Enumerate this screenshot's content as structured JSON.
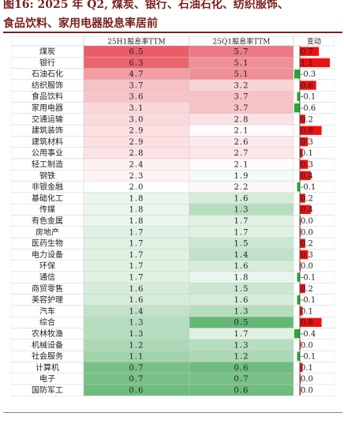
{
  "title": {
    "line1": "图16:   2025 年 Q2, 煤炭、银行、石油石化、纺织服饰、",
    "line2": "食品饮料、家用电器股息率居前"
  },
  "chart_data": {
    "type": "table",
    "columns": [
      "",
      "25H1股息率TTM",
      "25Q1股息率TTM",
      "变动"
    ],
    "rows": [
      {
        "industry": "煤炭",
        "h1": 6.5,
        "q1": 5.7,
        "change": 0.7
      },
      {
        "industry": "银行",
        "h1": 6.3,
        "q1": 5.1,
        "change": 1.1
      },
      {
        "industry": "石油石化",
        "h1": 4.7,
        "q1": 5.1,
        "change": -0.3
      },
      {
        "industry": "纺织服饰",
        "h1": 3.7,
        "q1": 3.2,
        "change": 0.6
      },
      {
        "industry": "食品饮料",
        "h1": 3.6,
        "q1": 3.7,
        "change": -0.1
      },
      {
        "industry": "家用电器",
        "h1": 3.1,
        "q1": 3.7,
        "change": -0.6
      },
      {
        "industry": "交通运输",
        "h1": 3.0,
        "q1": 2.8,
        "change": 0.2
      },
      {
        "industry": "建筑装饰",
        "h1": 2.9,
        "q1": 2.1,
        "change": 0.8
      },
      {
        "industry": "建筑材料",
        "h1": 2.9,
        "q1": 2.6,
        "change": 0.3
      },
      {
        "industry": "公用事业",
        "h1": 2.8,
        "q1": 2.7,
        "change": 0.1
      },
      {
        "industry": "轻工制造",
        "h1": 2.4,
        "q1": 2.1,
        "change": 0.3
      },
      {
        "industry": "钢铁",
        "h1": 2.3,
        "q1": 1.9,
        "change": 0.4
      },
      {
        "industry": "非银金融",
        "h1": 2.0,
        "q1": 2.2,
        "change": -0.1
      },
      {
        "industry": "基础化工",
        "h1": 1.8,
        "q1": 1.6,
        "change": 0.2
      },
      {
        "industry": "传媒",
        "h1": 1.8,
        "q1": 1.3,
        "change": 0.4
      },
      {
        "industry": "有色金属",
        "h1": 1.8,
        "q1": 1.7,
        "change": 0.0
      },
      {
        "industry": "房地产",
        "h1": 1.7,
        "q1": 1.7,
        "change": 0.0
      },
      {
        "industry": "医药生物",
        "h1": 1.7,
        "q1": 1.5,
        "change": 0.2
      },
      {
        "industry": "电力设备",
        "h1": 1.7,
        "q1": 1.4,
        "change": 0.3
      },
      {
        "industry": "环保",
        "h1": 1.7,
        "q1": 1.6,
        "change": 0.0
      },
      {
        "industry": "通信",
        "h1": 1.7,
        "q1": 1.8,
        "change": -0.1
      },
      {
        "industry": "商贸零售",
        "h1": 1.6,
        "q1": 1.5,
        "change": 0.2
      },
      {
        "industry": "美容护理",
        "h1": 1.6,
        "q1": 1.6,
        "change": -0.1
      },
      {
        "industry": "汽车",
        "h1": 1.4,
        "q1": 1.3,
        "change": 0.1
      },
      {
        "industry": "综合",
        "h1": 1.3,
        "q1": 0.5,
        "change": 0.8
      },
      {
        "industry": "农林牧渔",
        "h1": 1.3,
        "q1": 1.7,
        "change": -0.4
      },
      {
        "industry": "机械设备",
        "h1": 1.2,
        "q1": 1.3,
        "change": 0.0
      },
      {
        "industry": "社会服务",
        "h1": 1.1,
        "q1": 1.2,
        "change": -0.1
      },
      {
        "industry": "计算机",
        "h1": 0.7,
        "q1": 0.6,
        "change": 0.1
      },
      {
        "industry": "电子",
        "h1": 0.7,
        "q1": 0.7,
        "change": 0.0
      },
      {
        "industry": "国防军工",
        "h1": 0.6,
        "q1": 0.6,
        "change": 0.0
      }
    ],
    "colors": {
      "high": "#e8545f",
      "mid": "#ffffff",
      "low": "#5cb36e",
      "bar_pos": "#ee1111",
      "bar_neg": "#22aa33"
    }
  }
}
